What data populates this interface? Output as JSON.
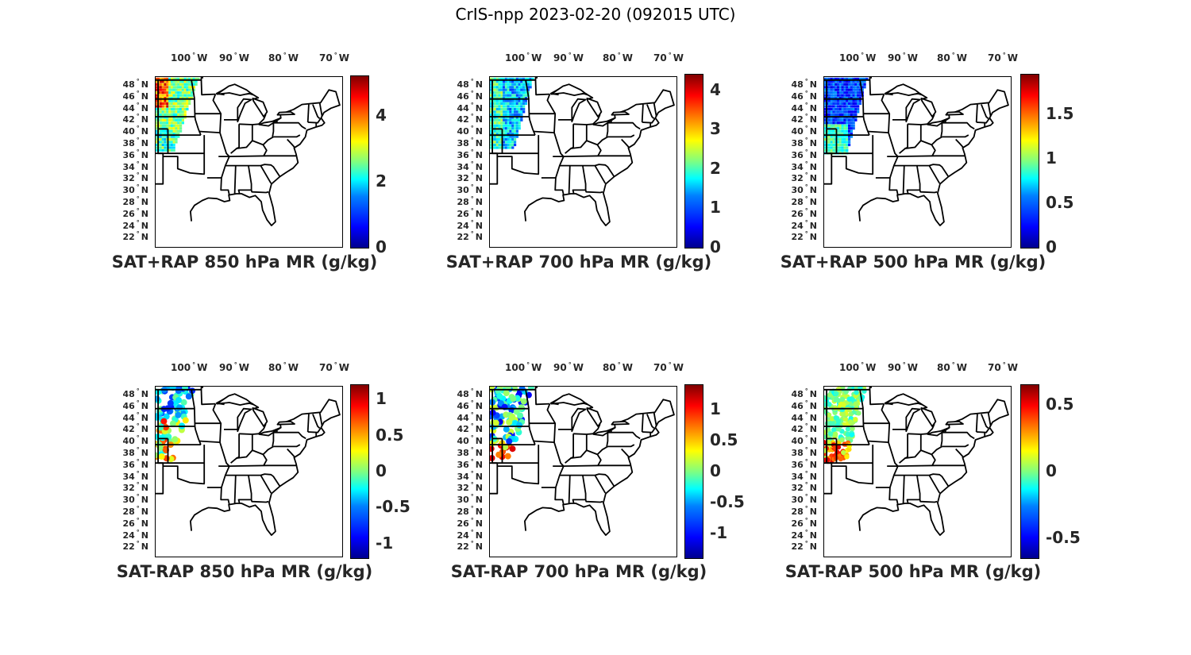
{
  "title": "CrIS-npp 2023-02-20 (092015 UTC)",
  "lon_labels": [
    "100",
    "90",
    "80",
    "70"
  ],
  "lon_suffix": "W",
  "lat_labels": [
    "48",
    "46",
    "44",
    "42",
    "40",
    "38",
    "36",
    "34",
    "32",
    "30",
    "28",
    "26",
    "24",
    "22"
  ],
  "lat_suffix": "N",
  "degree_symbol": "°",
  "panels": [
    {
      "title": "SAT+RAP 850 hPa MR (g/kg)",
      "field": "swath-850",
      "ticks": [
        {
          "label": "0",
          "v": 0
        },
        {
          "label": "2",
          "v": 2
        },
        {
          "label": "4",
          "v": 4
        }
      ],
      "cmin": 0,
      "cmax": 5.2
    },
    {
      "title": "SAT+RAP 700 hPa MR (g/kg)",
      "field": "swath-700",
      "ticks": [
        {
          "label": "0",
          "v": 0
        },
        {
          "label": "1",
          "v": 1
        },
        {
          "label": "2",
          "v": 2
        },
        {
          "label": "3",
          "v": 3
        },
        {
          "label": "4",
          "v": 4
        }
      ],
      "cmin": 0,
      "cmax": 4.4
    },
    {
      "title": "SAT+RAP 500 hPa MR (g/kg)",
      "field": "swath-500",
      "ticks": [
        {
          "label": "0",
          "v": 0
        },
        {
          "label": "0.5",
          "v": 0.5
        },
        {
          "label": "1",
          "v": 1
        },
        {
          "label": "1.5",
          "v": 1.5
        }
      ],
      "cmin": 0,
      "cmax": 1.95
    },
    {
      "title": "SAT-RAP 850 hPa MR (g/kg)",
      "field": "diff-850",
      "ticks": [
        {
          "label": "-1",
          "v": -1
        },
        {
          "label": "-0.5",
          "v": -0.5
        },
        {
          "label": "0",
          "v": 0
        },
        {
          "label": "0.5",
          "v": 0.5
        },
        {
          "label": "1",
          "v": 1
        }
      ],
      "cmin": -1.2,
      "cmax": 1.2
    },
    {
      "title": "SAT-RAP 700 hPa MR (g/kg)",
      "field": "diff-700",
      "ticks": [
        {
          "label": "-1",
          "v": -1
        },
        {
          "label": "-0.5",
          "v": -0.5
        },
        {
          "label": "0",
          "v": 0
        },
        {
          "label": "0.5",
          "v": 0.5
        },
        {
          "label": "1",
          "v": 1
        }
      ],
      "cmin": -1.4,
      "cmax": 1.4
    },
    {
      "title": "SAT-RAP 500 hPa MR (g/kg)",
      "field": "diff-500",
      "ticks": [
        {
          "label": "-0.5",
          "v": -0.5
        },
        {
          "label": "0",
          "v": 0
        },
        {
          "label": "0.5",
          "v": 0.5
        }
      ],
      "cmin": -0.65,
      "cmax": 0.65
    }
  ]
}
